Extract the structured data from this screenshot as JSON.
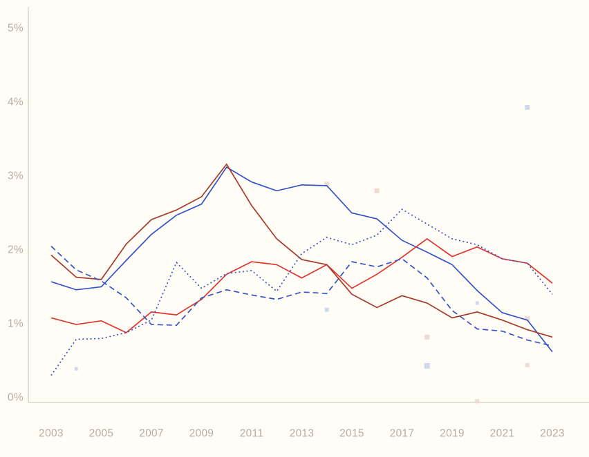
{
  "chart_data": {
    "type": "line",
    "title": "",
    "xlabel": "",
    "ylabel": "",
    "x": [
      2003,
      2004,
      2005,
      2006,
      2007,
      2008,
      2009,
      2010,
      2011,
      2012,
      2013,
      2014,
      2015,
      2016,
      2017,
      2018,
      2019,
      2020,
      2021,
      2022,
      2023
    ],
    "x_tick_labels": [
      "2003",
      "2005",
      "2007",
      "2009",
      "2011",
      "2013",
      "2015",
      "2017",
      "2019",
      "2021",
      "2023"
    ],
    "x_ticks": [
      2003,
      2005,
      2007,
      2009,
      2011,
      2013,
      2015,
      2017,
      2019,
      2021,
      2023
    ],
    "y_ticks": [
      0,
      1,
      2,
      3,
      4,
      5
    ],
    "y_tick_labels": [
      "0%",
      "1%",
      "2%",
      "3%",
      "4%",
      "5%"
    ],
    "xlim": [
      2003,
      2023
    ],
    "ylim": [
      0,
      5.35
    ],
    "grid": false,
    "legend": "none",
    "series": [
      {
        "name": "blue-solid",
        "style": "solid",
        "color_key": "blue",
        "values": [
          1.57,
          1.46,
          1.5,
          1.86,
          2.21,
          2.47,
          2.62,
          3.12,
          2.92,
          2.8,
          2.88,
          2.87,
          2.5,
          2.42,
          2.13,
          1.97,
          1.8,
          1.45,
          1.15,
          1.05,
          0.62
        ]
      },
      {
        "name": "red-solid",
        "style": "solid",
        "color_key": "red",
        "values": [
          1.08,
          0.99,
          1.04,
          0.88,
          1.16,
          1.12,
          1.33,
          1.67,
          1.84,
          1.8,
          1.62,
          1.8,
          1.48,
          1.67,
          1.9,
          2.15,
          1.91,
          2.04,
          1.88,
          1.82,
          1.55
        ]
      },
      {
        "name": "darkred-solid",
        "style": "solid",
        "color_key": "darkred",
        "values": [
          1.93,
          1.63,
          1.6,
          2.08,
          2.41,
          2.54,
          2.72,
          3.16,
          2.6,
          2.15,
          1.87,
          1.8,
          1.4,
          1.22,
          1.38,
          1.28,
          1.08,
          1.16,
          1.05,
          0.92,
          0.82
        ]
      },
      {
        "name": "blue-dashed",
        "style": "dashed",
        "color_key": "blue",
        "values": [
          2.05,
          1.73,
          1.58,
          1.35,
          0.99,
          0.98,
          1.35,
          1.46,
          1.39,
          1.33,
          1.43,
          1.41,
          1.84,
          1.77,
          1.88,
          1.62,
          1.18,
          0.93,
          0.9,
          0.78,
          0.7
        ]
      },
      {
        "name": "blue-dotted",
        "style": "dotted",
        "color_key": "blue",
        "values": [
          0.3,
          0.79,
          0.8,
          0.88,
          1.05,
          1.83,
          1.48,
          1.68,
          1.72,
          1.44,
          1.95,
          2.17,
          2.07,
          2.2,
          2.55,
          2.35,
          2.15,
          2.07,
          1.88,
          1.82,
          1.4
        ]
      }
    ],
    "scatter_markers": [
      {
        "x": 2004,
        "y": 0.39,
        "color_key": "lavender",
        "size": 5
      },
      {
        "x": 2014,
        "y": 2.89,
        "color_key": "pink",
        "size": 7
      },
      {
        "x": 2014,
        "y": 1.19,
        "color_key": "lavender",
        "size": 6
      },
      {
        "x": 2016,
        "y": 2.8,
        "color_key": "pink",
        "size": 7
      },
      {
        "x": 2018,
        "y": 0.82,
        "color_key": "pink",
        "size": 7
      },
      {
        "x": 2018,
        "y": 0.43,
        "color_key": "lavender",
        "size": 8
      },
      {
        "x": 2020,
        "y": 1.28,
        "color_key": "lavender",
        "size": 5
      },
      {
        "x": 2020,
        "y": -0.05,
        "color_key": "pink",
        "size": 6
      },
      {
        "x": 2022,
        "y": 3.93,
        "color_key": "lavender",
        "size": 7
      },
      {
        "x": 2022,
        "y": 1.07,
        "color_key": "pink",
        "size": 7
      },
      {
        "x": 2022,
        "y": 0.44,
        "color_key": "pink",
        "size": 6
      }
    ],
    "colors": {
      "blue": "#3354c6",
      "red": "#e0342f",
      "darkred": "#a63a28",
      "pink": "#ecd7d0",
      "lavender": "#cbd4ec",
      "axis_line": "#d5cfc2",
      "tick_label": "#b9aca3",
      "background": "#fffdf6"
    }
  }
}
